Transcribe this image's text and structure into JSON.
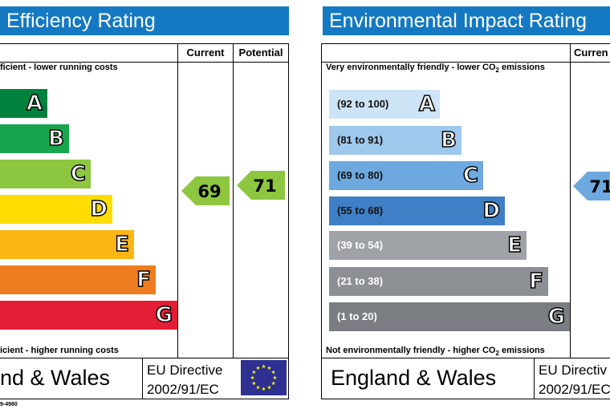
{
  "left_panel": {
    "title": "Efficiency Rating",
    "col_current": "Current",
    "col_potential": "Potential",
    "top_note": "ficient - lower running costs",
    "bottom_note": "icient - higher running costs",
    "bands": [
      {
        "letter": "A",
        "color": "#00823f"
      },
      {
        "letter": "B",
        "color": "#19a54d"
      },
      {
        "letter": "C",
        "color": "#8dc63f"
      },
      {
        "letter": "D",
        "color": "#ffdd00"
      },
      {
        "letter": "E",
        "color": "#fbb616"
      },
      {
        "letter": "F",
        "color": "#ee7d1f"
      },
      {
        "letter": "G",
        "color": "#e41e35"
      }
    ],
    "current": {
      "value": "69",
      "band": "C",
      "color": "#8dc63f"
    },
    "potential": {
      "value": "71",
      "band": "C",
      "color": "#8dc63f"
    },
    "country": "nd & Wales",
    "eu_line1": "EU Directive",
    "eu_line2": "2002/91/EC",
    "footer_code": "9-4980"
  },
  "right_panel": {
    "title": "Environmental Impact Rating",
    "col_current": "Curren",
    "top_note_prefix": "Very environmentally friendly - lower CO",
    "top_note_sub": "2",
    "top_note_suffix": " emissions",
    "bottom_note_prefix": "Not environmentally friendly - higher CO",
    "bottom_note_sub": "2",
    "bottom_note_suffix": " emissions",
    "bands": [
      {
        "range": "(92 to 100)",
        "letter": "A",
        "color": "#cde3f6"
      },
      {
        "range": "(81 to 91)",
        "letter": "B",
        "color": "#9ec8ec"
      },
      {
        "range": "(69 to 80)",
        "letter": "C",
        "color": "#6da8df"
      },
      {
        "range": "(55 to 68)",
        "letter": "D",
        "color": "#3f7fc5"
      },
      {
        "range": "(39 to 54)",
        "letter": "E",
        "color": "#9fa3a7"
      },
      {
        "range": "(21 to 38)",
        "letter": "F",
        "color": "#8c9094"
      },
      {
        "range": "(1 to 20)",
        "letter": "G",
        "color": "#7a7e83"
      }
    ],
    "current": {
      "value": "71",
      "band": "C",
      "color": "#6da8df"
    },
    "country": "England & Wales",
    "eu_line1": "EU Directiv",
    "eu_line2": "2002/91/EC"
  }
}
